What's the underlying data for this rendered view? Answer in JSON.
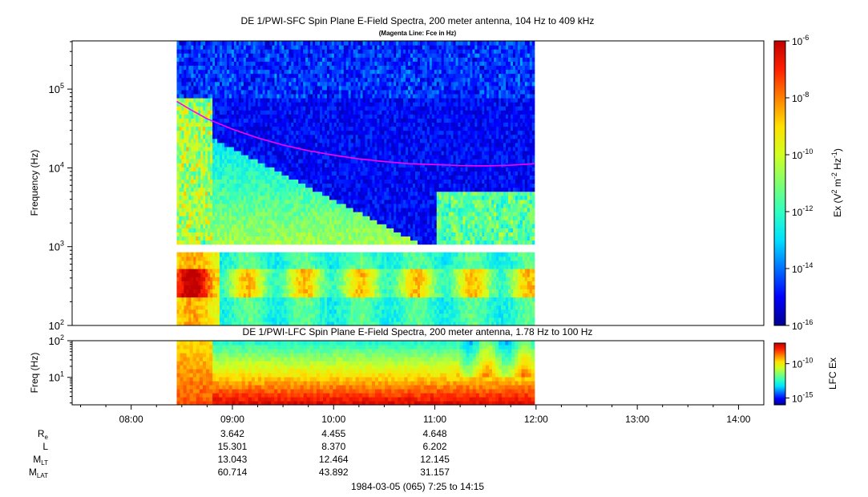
{
  "chart_data": [
    {
      "type": "heatmap",
      "title": "DE 1/PWI-SFC  Spin Plane E-Field Spectra, 200 meter antenna, 104 Hz to 409 kHz",
      "subtitle": "(Magenta Line: Fce in Hz)",
      "ylabel": "Frequency (Hz)",
      "y_scale": "log",
      "ylim": [
        100,
        409000
      ],
      "y_ticks": [
        {
          "value": 100,
          "base": "10",
          "exp": "2"
        },
        {
          "value": 1000,
          "base": "10",
          "exp": "3"
        },
        {
          "value": 10000,
          "base": "10",
          "exp": "4"
        },
        {
          "value": 100000,
          "base": "10",
          "exp": "5"
        }
      ],
      "xlim": [
        "07:25",
        "14:15"
      ],
      "data_start": "08:27",
      "data_end": "11:59",
      "gap_hz": [
        890,
        1050
      ],
      "colorbar": {
        "scale": "log",
        "range": [
          1e-16,
          1e-06
        ],
        "label_prefix": "Ex (V",
        "label_sup1": "2",
        "label_mid": " m",
        "label_sup2": "-2",
        "label_mid2": " Hz",
        "label_sup3": "-1",
        "label_suffix": ")",
        "ticks": [
          {
            "value": 1e-06,
            "base": "10",
            "exp": "-6"
          },
          {
            "value": 1e-08,
            "base": "10",
            "exp": "-8"
          },
          {
            "value": 1e-10,
            "base": "10",
            "exp": "-10"
          },
          {
            "value": 1e-12,
            "base": "10",
            "exp": "-12"
          },
          {
            "value": 1e-14,
            "base": "10",
            "exp": "-14"
          },
          {
            "value": 1e-16,
            "base": "10",
            "exp": "-16"
          }
        ]
      },
      "series": [
        {
          "line_color": "#ff00ff",
          "x": [
            "08:27",
            "08:35",
            "08:45",
            "09:00",
            "09:15",
            "09:30",
            "09:45",
            "10:00",
            "10:15",
            "10:30",
            "10:45",
            "11:00",
            "11:15",
            "11:30",
            "11:45",
            "11:59"
          ],
          "values": [
            70000,
            55000,
            42000,
            31000,
            24000,
            19500,
            16500,
            14500,
            13000,
            12000,
            11300,
            11000,
            10700,
            10600,
            10800,
            11300
          ]
        }
      ]
    },
    {
      "type": "heatmap",
      "title": "DE 1/PWI-LFC  Spin Plane E-Field Spectra, 200 meter antenna, 1.78 Hz to 100 Hz",
      "ylabel": "Freq (Hz)",
      "y_scale": "log",
      "ylim": [
        1.78,
        100
      ],
      "y_ticks": [
        {
          "value": 10,
          "base": "10",
          "exp": "1"
        },
        {
          "value": 100,
          "base": "10",
          "exp": "2"
        }
      ],
      "xlim": [
        "07:25",
        "14:15"
      ],
      "data_start": "08:27",
      "data_end": "11:59",
      "colorbar": {
        "label": "LFC Ex",
        "scale": "log",
        "range": [
          1e-16,
          1e-07
        ],
        "ticks": [
          {
            "value": 1e-10,
            "base": "10",
            "exp": "-10"
          },
          {
            "value": 1e-15,
            "base": "10",
            "exp": "-15"
          }
        ]
      },
      "x_ticks": [
        "08:00",
        "09:00",
        "10:00",
        "11:00",
        "12:00",
        "13:00",
        "14:00"
      ]
    }
  ],
  "ephemeris": [
    {
      "base": "R",
      "sub": "e",
      "values": [
        "3.642",
        "4.455",
        "4.648"
      ]
    },
    {
      "base": "L",
      "sub": "",
      "values": [
        "15.301",
        "8.370",
        "6.202"
      ]
    },
    {
      "base": "M",
      "sub": "LT",
      "values": [
        "13.043",
        "12.464",
        "12.145"
      ]
    },
    {
      "base": "M",
      "sub": "LAT",
      "values": [
        "60.714",
        "43.892",
        "31.157"
      ]
    }
  ],
  "ephemeris_times": [
    "09:00",
    "10:00",
    "11:00"
  ],
  "footer": "1984-03-05 (065) 7:25 to 14:15",
  "colors": {
    "colormap": [
      "#00008f",
      "#0000ff",
      "#0070ff",
      "#00e0ff",
      "#30ffc0",
      "#80ff70",
      "#d0ff20",
      "#ffe000",
      "#ff8000",
      "#ff2000",
      "#c00000"
    ],
    "fce_line": "#ff00ff"
  }
}
